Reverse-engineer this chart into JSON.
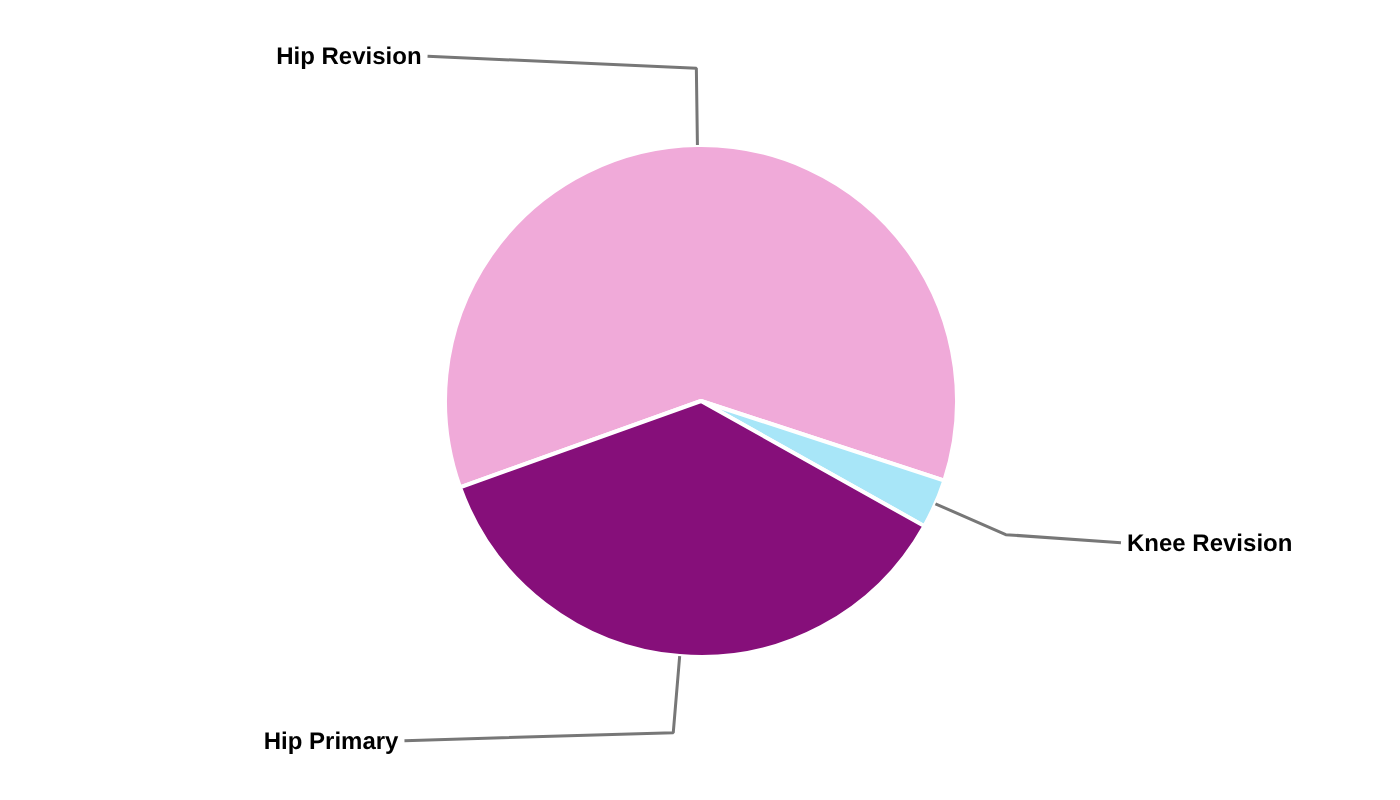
{
  "chart_data": {
    "type": "pie",
    "categories": [
      "Hip Revision",
      "Knee Revision",
      "Hip Primary"
    ],
    "values": [
      60.5,
      3.1,
      36.4
    ],
    "colors": [
      "#f0aad9",
      "#a8e6f8",
      "#860f7a"
    ]
  }
}
